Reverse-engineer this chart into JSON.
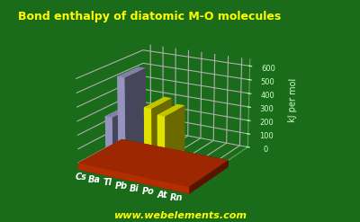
{
  "title": "Bond enthalpy of diatomic M-O molecules",
  "ylabel": "kJ per mol",
  "website": "www.webelements.com",
  "elements": [
    "Cs",
    "Ba",
    "Tl",
    "Pb",
    "Bi",
    "Po",
    "At",
    "Rn"
  ],
  "values": [
    258,
    563,
    0,
    374,
    337,
    0,
    0,
    0
  ],
  "bar_colors_low": [
    "#a8a8d8",
    "#a8a8d8",
    "#ffff00",
    "#ffff00",
    "#ffff00",
    "#ffff00",
    "#ffff00",
    "#ffff00"
  ],
  "bar_colors_high": [
    "#d0d0f0",
    "#d0d0f0",
    "#ffff44",
    "#ffff44",
    "#ffff44",
    "#ffff44",
    "#ffff44",
    "#ffff44"
  ],
  "bg_color": "#1a6b1a",
  "platform_color": "#cc3300",
  "platform_color2": "#aa2200",
  "grid_color": "#5aaa5a",
  "title_color": "#ffff00",
  "label_color": "#ffffff",
  "tick_color": "#ccffcc",
  "ylim": [
    0,
    650
  ],
  "yticks": [
    0,
    100,
    200,
    300,
    400,
    500,
    600
  ],
  "title_fontsize": 9,
  "label_fontsize": 8,
  "ylabel_fontsize": 7,
  "website_fontsize": 8,
  "elev": 18,
  "azim": -60
}
